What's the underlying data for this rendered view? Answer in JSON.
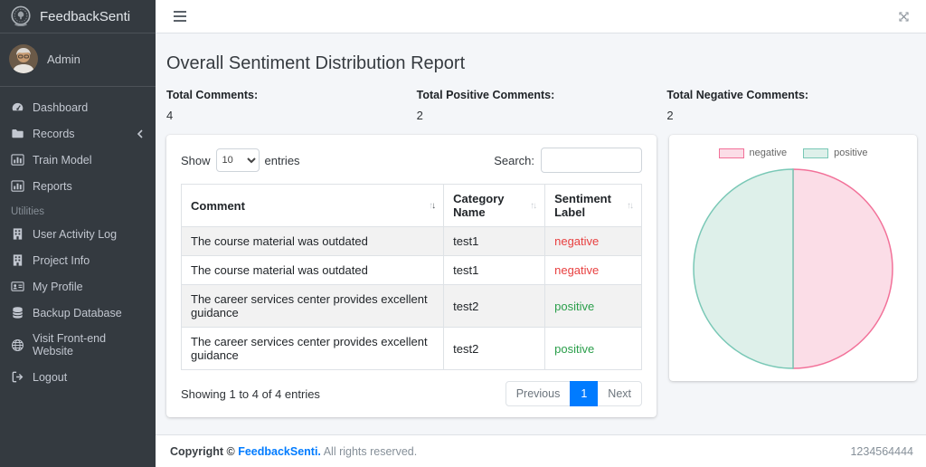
{
  "brand": {
    "title": "FeedbackSenti"
  },
  "user": {
    "name": "Admin"
  },
  "sidebar": {
    "items": [
      {
        "label": "Dashboard"
      },
      {
        "label": "Records"
      },
      {
        "label": "Train Model"
      },
      {
        "label": "Reports"
      },
      {
        "label": "User Activity Log"
      },
      {
        "label": "Project Info"
      },
      {
        "label": "My Profile"
      },
      {
        "label": "Backup Database"
      },
      {
        "label": "Visit Front-end Website"
      },
      {
        "label": "Logout"
      }
    ],
    "section_label": "Utilities"
  },
  "page": {
    "title": "Overall Sentiment Distribution Report"
  },
  "stats": [
    {
      "label": "Total Comments:",
      "value": "4"
    },
    {
      "label": "Total Positive Comments:",
      "value": "2"
    },
    {
      "label": "Total Negative Comments:",
      "value": "2"
    }
  ],
  "table": {
    "show_label": "Show",
    "entries_label": "entries",
    "page_length": "10",
    "search_label": "Search:",
    "search_value": "",
    "columns": [
      "Comment",
      "Category Name",
      "Sentiment Label"
    ],
    "rows": [
      {
        "comment": "The course material was outdated",
        "category": "test1",
        "sentiment": "negative"
      },
      {
        "comment": "The course material was outdated",
        "category": "test1",
        "sentiment": "negative"
      },
      {
        "comment": "The career services center provides excellent guidance",
        "category": "test2",
        "sentiment": "positive"
      },
      {
        "comment": "The career services center provides excellent guidance",
        "category": "test2",
        "sentiment": "positive"
      }
    ],
    "info": "Showing 1 to 4 of 4 entries",
    "pagination": {
      "previous": "Previous",
      "page": "1",
      "next": "Next"
    }
  },
  "chart_data": {
    "type": "pie",
    "labels": [
      "negative",
      "positive"
    ],
    "values": [
      2,
      2
    ],
    "colors": [
      {
        "fill": "#fbdde7",
        "border": "#f27199"
      },
      {
        "fill": "#def0ea",
        "border": "#79c8b6"
      }
    ],
    "legend_position": "top"
  },
  "status_colors": {
    "negative": "#e84040",
    "positive": "#2a9e4a",
    "accent": "#007bff"
  },
  "footer": {
    "copyright_prefix": "Copyright ©",
    "brand": "FeedbackSenti.",
    "suffix": "All rights reserved.",
    "right_text": "1234564444"
  }
}
